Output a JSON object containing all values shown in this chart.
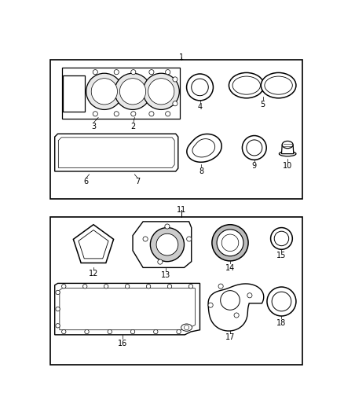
{
  "background_color": "#ffffff",
  "line_color": "#000000",
  "label_fontsize": 7.0,
  "fig_width": 4.38,
  "fig_height": 5.33
}
